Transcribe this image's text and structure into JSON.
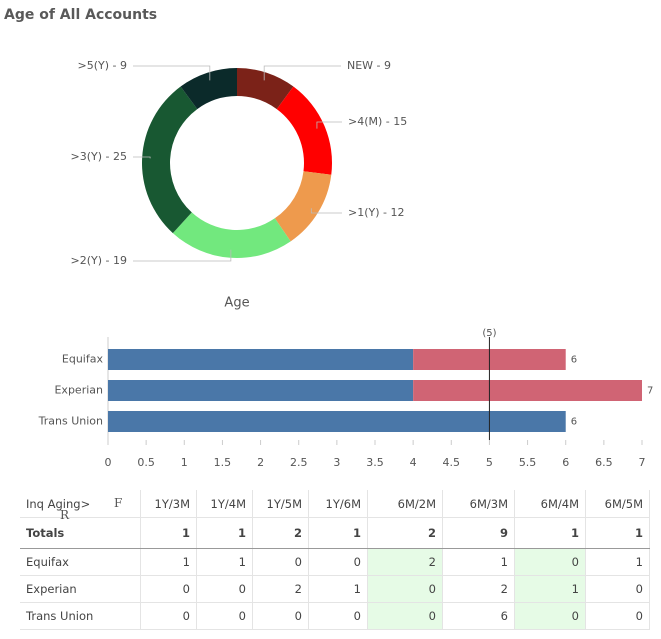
{
  "title": "Age of All Accounts",
  "chart_data": [
    {
      "type": "pie",
      "labels": [
        "NEW - 9",
        ">4(M) - 15",
        ">1(Y) - 12",
        ">2(Y) - 19",
        ">3(Y) - 25",
        ">5(Y) - 9"
      ],
      "values": [
        9,
        15,
        12,
        19,
        25,
        9
      ],
      "colors": [
        "#7b2218",
        "#ff0000",
        "#ee9a4d",
        "#72e87e",
        "#185832",
        "#0b2a2a"
      ],
      "xlabel": "Age",
      "donut": true
    },
    {
      "type": "stacked-bar",
      "orientation": "horizontal",
      "categories": [
        "Equifax",
        "Experian",
        "Trans Union"
      ],
      "series": [
        {
          "color": "#4a77a8",
          "values": [
            4,
            4,
            6
          ]
        },
        {
          "color": "#d06474",
          "values": [
            2,
            3,
            null
          ]
        }
      ],
      "totals": [
        6,
        7,
        6
      ],
      "xlim": [
        0,
        7
      ],
      "xticks": [
        0,
        0.5,
        1,
        1.5,
        2,
        2.5,
        3,
        3.5,
        4,
        4.5,
        5,
        5.5,
        6,
        6.5,
        7
      ],
      "reference_line": {
        "value": 5,
        "label": "(5)"
      }
    }
  ],
  "table": {
    "markers": [
      "F",
      "R"
    ],
    "header": [
      "Inq Aging>",
      "1Y/3M",
      "1Y/4M",
      "1Y/5M",
      "1Y/6M",
      "6M/2M",
      "6M/3M",
      "6M/4M",
      "6M/5M"
    ],
    "rows": [
      [
        "Totals",
        1,
        1,
        2,
        1,
        2,
        9,
        1,
        1
      ],
      [
        "Equifax",
        1,
        1,
        0,
        0,
        2,
        1,
        0,
        1
      ],
      [
        "Experian",
        0,
        0,
        2,
        1,
        0,
        2,
        1,
        0
      ],
      [
        "Trans Union",
        0,
        0,
        0,
        0,
        0,
        6,
        0,
        0
      ]
    ],
    "highlight_columns": [
      5,
      7
    ],
    "highlight_color": "#e6fbe6"
  }
}
